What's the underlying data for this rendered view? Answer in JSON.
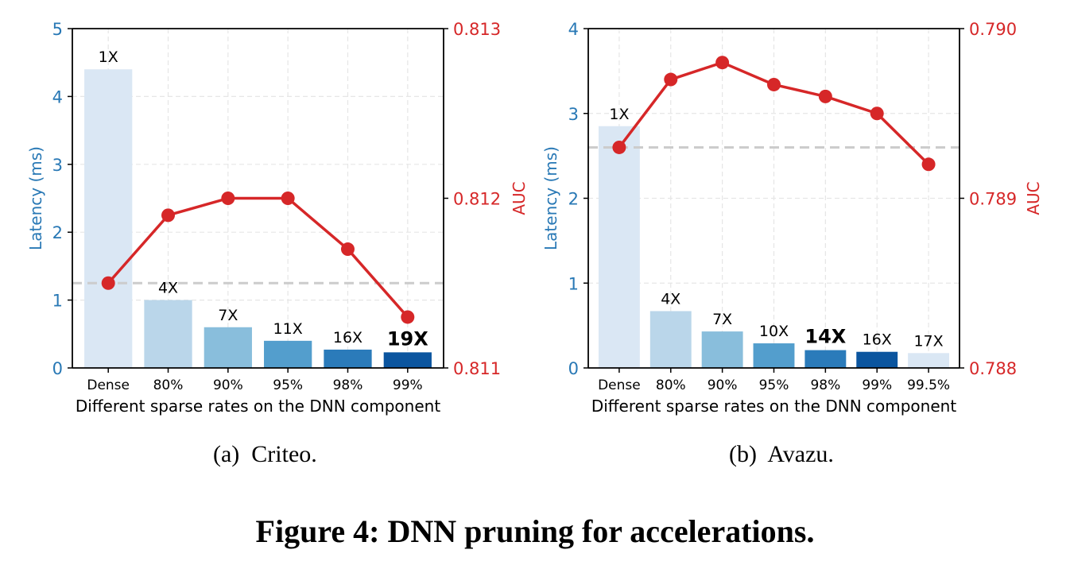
{
  "colors": {
    "left_axis": "#2878b5",
    "right_axis": "#d62728",
    "line": "#d62728",
    "reference_line": "#cccccc",
    "grid": "#e6e6e6",
    "bars": [
      "#dae7f4",
      "#bad6ea",
      "#89bedc",
      "#539ecd",
      "#2b7bba",
      "#0b559f",
      "#dae7f4"
    ]
  },
  "chart_data": [
    {
      "type": "bar+line",
      "id": "criteo",
      "subcaption": "(a)  Criteo.",
      "xlabel": "Different sparse rates on the DNN component",
      "ylabel": "Latency (ms)",
      "y2label": "AUC",
      "categories": [
        "Dense",
        "80%",
        "90%",
        "95%",
        "98%",
        "99%"
      ],
      "ylim": [
        0,
        5
      ],
      "yticks": [
        "0",
        "1",
        "2",
        "3",
        "4",
        "5"
      ],
      "y2lim": [
        0.811,
        0.813
      ],
      "y2ticks": [
        "0.811",
        "0.812",
        "0.813"
      ],
      "grid": true,
      "series": [
        {
          "name": "Latency (ms)",
          "kind": "bar",
          "axis": "left",
          "values": [
            4.4,
            1.0,
            0.6,
            0.4,
            0.27,
            0.23
          ]
        },
        {
          "name": "AUC",
          "kind": "line",
          "axis": "right",
          "values": [
            0.8115,
            0.8119,
            0.812,
            0.812,
            0.8117,
            0.8113
          ]
        }
      ],
      "bar_labels": [
        "1X",
        "4X",
        "7X",
        "11X",
        "16X",
        "19X"
      ],
      "bold_label_index": 5,
      "reference_line": {
        "axis": "right",
        "value": 0.8115,
        "style": "dashed"
      }
    },
    {
      "type": "bar+line",
      "id": "avazu",
      "subcaption": "(b)  Avazu.",
      "xlabel": "Different sparse rates on the DNN component",
      "ylabel": "Latency (ms)",
      "y2label": "AUC",
      "categories": [
        "Dense",
        "80%",
        "90%",
        "95%",
        "98%",
        "99%",
        "99.5%"
      ],
      "ylim": [
        0,
        4
      ],
      "yticks": [
        "0",
        "1",
        "2",
        "3",
        "4"
      ],
      "y2lim": [
        0.788,
        0.79
      ],
      "y2ticks": [
        "0.788",
        "0.789",
        "0.790"
      ],
      "grid": true,
      "series": [
        {
          "name": "Latency (ms)",
          "kind": "bar",
          "axis": "left",
          "values": [
            2.85,
            0.67,
            0.43,
            0.29,
            0.21,
            0.19,
            0.175
          ]
        },
        {
          "name": "AUC",
          "kind": "line",
          "axis": "right",
          "values": [
            0.7893,
            0.7897,
            0.7898,
            0.78967,
            0.7896,
            0.7895,
            0.7892
          ]
        }
      ],
      "bar_labels": [
        "1X",
        "4X",
        "7X",
        "10X",
        "14X",
        "16X",
        "17X"
      ],
      "bold_label_index": 4,
      "reference_line": {
        "axis": "right",
        "value": 0.7893,
        "style": "dashed"
      }
    }
  ],
  "figure_caption": "Figure 4: DNN pruning for accelerations."
}
